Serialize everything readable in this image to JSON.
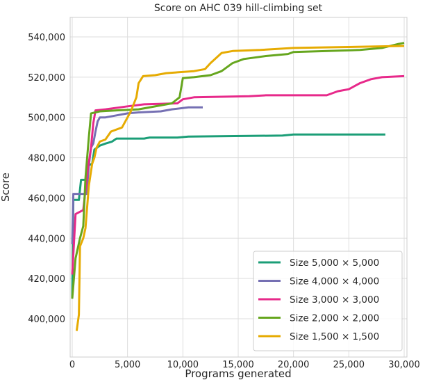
{
  "chart_data": {
    "type": "line",
    "title": "Score on AHC 039 hill-climbing set",
    "xlabel": "Programs generated",
    "ylabel": "Score",
    "xlim": [
      -200,
      30000
    ],
    "ylim": [
      392000,
      544500
    ],
    "x_ticks": [
      0,
      5000,
      10000,
      15000,
      20000,
      25000,
      30000
    ],
    "x_tick_labels": [
      "0",
      "5,000",
      "10,000",
      "15,000",
      "20,000",
      "25,000",
      "30,000"
    ],
    "y_ticks": [
      400000,
      420000,
      440000,
      460000,
      480000,
      500000,
      520000,
      540000
    ],
    "y_tick_labels": [
      "400,000",
      "420,000",
      "440,000",
      "460,000",
      "480,000",
      "500,000",
      "520,000",
      "540,000"
    ],
    "grid": true,
    "legend_position": "lower right",
    "series": [
      {
        "name": "Size 5,000 × 5,000",
        "color": "#1b9e77",
        "points": [
          [
            0,
            410000
          ],
          [
            100,
            459000
          ],
          [
            600,
            459000
          ],
          [
            800,
            469000
          ],
          [
            1200,
            469000
          ],
          [
            1400,
            476000
          ],
          [
            1800,
            477000
          ],
          [
            2000,
            484000
          ],
          [
            2500,
            486000
          ],
          [
            3000,
            487000
          ],
          [
            3600,
            488000
          ],
          [
            4000,
            489500
          ],
          [
            6500,
            489500
          ],
          [
            7000,
            490000
          ],
          [
            9500,
            490000
          ],
          [
            10500,
            490500
          ],
          [
            19000,
            491000
          ],
          [
            20000,
            491500
          ],
          [
            28300,
            491500
          ]
        ]
      },
      {
        "name": "Size 4,000 × 4,000",
        "color": "#7570b3",
        "points": [
          [
            0,
            437000
          ],
          [
            100,
            462000
          ],
          [
            1300,
            462000
          ],
          [
            1500,
            476000
          ],
          [
            1700,
            485000
          ],
          [
            1900,
            487000
          ],
          [
            2100,
            493000
          ],
          [
            2300,
            498000
          ],
          [
            2500,
            500000
          ],
          [
            3000,
            500000
          ],
          [
            4000,
            501000
          ],
          [
            5000,
            502000
          ],
          [
            6000,
            502500
          ],
          [
            8000,
            503000
          ],
          [
            9000,
            504000
          ],
          [
            10500,
            505000
          ],
          [
            11800,
            505000
          ]
        ]
      },
      {
        "name": "Size 3,000 × 3,000",
        "color": "#e7298a",
        "points": [
          [
            0,
            422000
          ],
          [
            300,
            452000
          ],
          [
            1000,
            454000
          ],
          [
            1400,
            474000
          ],
          [
            1700,
            485000
          ],
          [
            1900,
            497000
          ],
          [
            2100,
            503500
          ],
          [
            3000,
            504000
          ],
          [
            5000,
            505500
          ],
          [
            6500,
            506500
          ],
          [
            9500,
            507000
          ],
          [
            10000,
            509000
          ],
          [
            11000,
            510000
          ],
          [
            16000,
            510500
          ],
          [
            17500,
            511000
          ],
          [
            23000,
            511000
          ],
          [
            24000,
            513000
          ],
          [
            25000,
            514000
          ],
          [
            26000,
            517000
          ],
          [
            27000,
            519000
          ],
          [
            28000,
            520000
          ],
          [
            30000,
            520500
          ]
        ]
      },
      {
        "name": "Size 2,000 × 2,000",
        "color": "#66a61e",
        "points": [
          [
            0,
            410000
          ],
          [
            300,
            430000
          ],
          [
            700,
            440000
          ],
          [
            1000,
            446000
          ],
          [
            1200,
            470000
          ],
          [
            1500,
            490000
          ],
          [
            1700,
            502000
          ],
          [
            2500,
            503000
          ],
          [
            4000,
            503500
          ],
          [
            6000,
            504000
          ],
          [
            9000,
            507000
          ],
          [
            9700,
            510000
          ],
          [
            10000,
            519500
          ],
          [
            11000,
            520000
          ],
          [
            12500,
            521000
          ],
          [
            13500,
            523000
          ],
          [
            14500,
            527000
          ],
          [
            15500,
            529000
          ],
          [
            17500,
            530500
          ],
          [
            19500,
            531500
          ],
          [
            20000,
            532500
          ],
          [
            26000,
            533500
          ],
          [
            28000,
            534500
          ],
          [
            29500,
            536500
          ],
          [
            30000,
            537000
          ]
        ]
      },
      {
        "name": "Size 1,500 × 1,500",
        "color": "#e6ab02",
        "points": [
          [
            400,
            394000
          ],
          [
            600,
            402000
          ],
          [
            700,
            436000
          ],
          [
            1000,
            440000
          ],
          [
            1200,
            445000
          ],
          [
            1500,
            466000
          ],
          [
            1800,
            477000
          ],
          [
            2000,
            480000
          ],
          [
            2200,
            485000
          ],
          [
            2500,
            488000
          ],
          [
            3000,
            489000
          ],
          [
            3500,
            493000
          ],
          [
            4500,
            495000
          ],
          [
            5300,
            503000
          ],
          [
            5800,
            510000
          ],
          [
            6000,
            517000
          ],
          [
            6400,
            520500
          ],
          [
            7500,
            521000
          ],
          [
            8500,
            522000
          ],
          [
            11000,
            523000
          ],
          [
            12000,
            524000
          ],
          [
            12500,
            527000
          ],
          [
            13500,
            532000
          ],
          [
            14500,
            533000
          ],
          [
            17000,
            533500
          ],
          [
            20000,
            534500
          ],
          [
            25000,
            535000
          ],
          [
            30000,
            535500
          ]
        ]
      }
    ]
  }
}
